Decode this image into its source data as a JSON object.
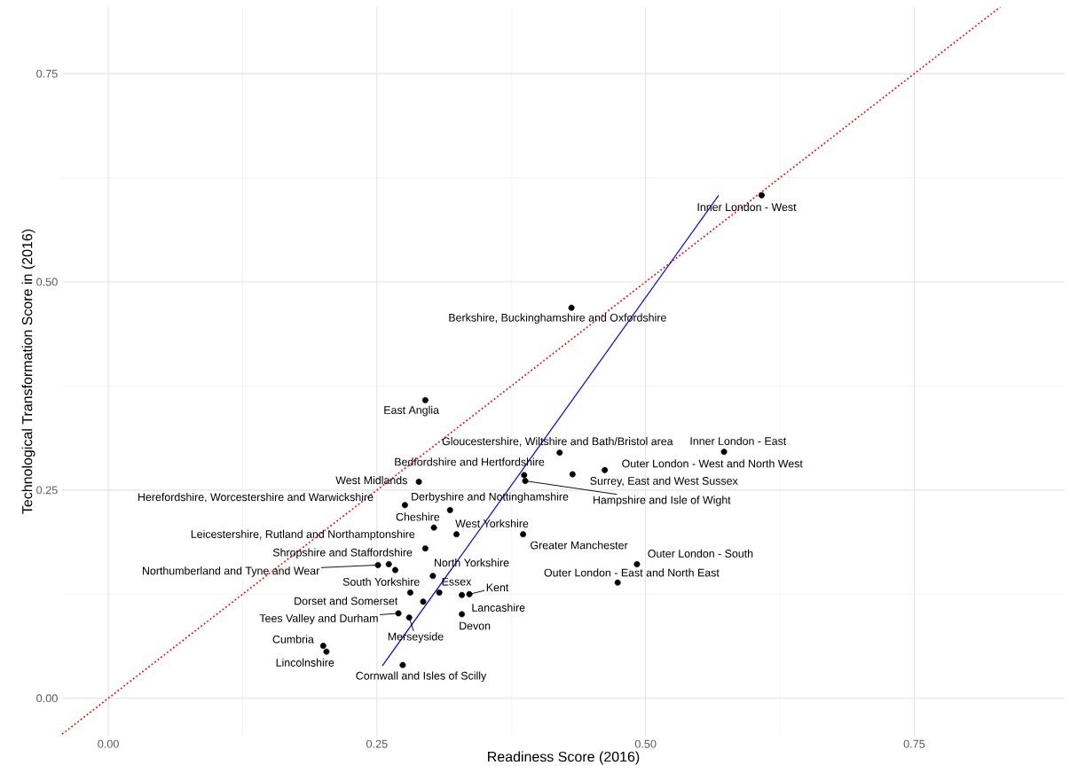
{
  "chart_data": {
    "type": "scatter",
    "xlabel": "Readiness Score (2016)",
    "ylabel": "Technological Transformation Score in (2016)",
    "xlim": [
      -0.043,
      0.89
    ],
    "ylim": [
      -0.045,
      0.83
    ],
    "xticks": [
      {
        "value": 0,
        "label": "0.00"
      },
      {
        "value": 0.25,
        "label": "0.25"
      },
      {
        "value": 0.5,
        "label": "0.50"
      },
      {
        "value": 0.75,
        "label": "0.75"
      }
    ],
    "yticks": [
      {
        "value": 0,
        "label": "0.00"
      },
      {
        "value": 0.25,
        "label": "0.25"
      },
      {
        "value": 0.5,
        "label": "0.50"
      },
      {
        "value": 0.75,
        "label": "0.75"
      }
    ],
    "grid": true,
    "series": [
      {
        "type": "line",
        "color": "#ff0000",
        "line_style": "dotted",
        "x": [
          -0.043,
          0.83
        ],
        "values": [
          -0.043,
          0.83
        ]
      },
      {
        "type": "line",
        "color": "#0000ff",
        "line_style": "solid",
        "x": [
          0.255,
          0.568
        ],
        "values": [
          0.039,
          0.604
        ]
      },
      {
        "type": "scatter",
        "color": "#000000",
        "marker": "circle",
        "x": [
          0.608,
          0.431,
          0.295,
          0.42,
          0.573,
          0.462,
          0.432,
          0.387,
          0.388,
          0.289,
          0.276,
          0.318,
          0.303,
          0.324,
          0.386,
          0.295,
          0.261,
          0.251,
          0.302,
          0.492,
          0.474,
          0.281,
          0.308,
          0.336,
          0.293,
          0.329,
          0.27,
          0.28,
          0.329,
          0.2,
          0.203,
          0.274,
          0.267
        ],
        "values": [
          0.604,
          0.469,
          0.358,
          0.295,
          0.296,
          0.274,
          0.269,
          0.268,
          0.261,
          0.26,
          0.232,
          0.226,
          0.205,
          0.197,
          0.197,
          0.18,
          0.161,
          0.16,
          0.147,
          0.161,
          0.139,
          0.127,
          0.127,
          0.125,
          0.116,
          0.124,
          0.102,
          0.097,
          0.101,
          0.063,
          0.056,
          0.04,
          0.154
        ]
      }
    ],
    "annotations": [
      {
        "text": "Inner London - West",
        "x": 0.608,
        "y": 0.604
      },
      {
        "text": "Berkshire, Buckinghamshire and Oxfordshire",
        "x": 0.431,
        "y": 0.469
      },
      {
        "text": "East Anglia",
        "x": 0.295,
        "y": 0.358
      },
      {
        "text": "Gloucestershire, Wiltshire and Bath/Bristol area",
        "x": 0.42,
        "y": 0.295
      },
      {
        "text": "Inner London - East",
        "x": 0.573,
        "y": 0.296
      },
      {
        "text": "Outer London - West and North West",
        "x": 0.462,
        "y": 0.274
      },
      {
        "text": "Surrey, East and West Sussex",
        "x": 0.432,
        "y": 0.269
      },
      {
        "text": "Bedfordshire and Hertfordshire",
        "x": 0.387,
        "y": 0.268
      },
      {
        "text": "Hampshire and Isle of Wight",
        "x": 0.388,
        "y": 0.261
      },
      {
        "text": "West Midlands",
        "x": 0.289,
        "y": 0.26
      },
      {
        "text": "Herefordshire, Worcestershire and Warwickshire",
        "x": 0.276,
        "y": 0.232
      },
      {
        "text": "Derbyshire and Nottinghamshire",
        "x": 0.318,
        "y": 0.226
      },
      {
        "text": "Cheshire",
        "x": 0.303,
        "y": 0.205
      },
      {
        "text": "West Yorkshire",
        "x": 0.324,
        "y": 0.197
      },
      {
        "text": "Greater Manchester",
        "x": 0.386,
        "y": 0.197
      },
      {
        "text": "Leicestershire, Rutland and Northamptonshire",
        "x": 0.295,
        "y": 0.18
      },
      {
        "text": "Shropshire and Staffordshire",
        "x": 0.261,
        "y": 0.161
      },
      {
        "text": "Northumberland and Tyne and Wear",
        "x": 0.251,
        "y": 0.16
      },
      {
        "text": "North Yorkshire",
        "x": 0.302,
        "y": 0.147
      },
      {
        "text": "Outer London - South",
        "x": 0.492,
        "y": 0.161
      },
      {
        "text": "Outer London - East and North East",
        "x": 0.474,
        "y": 0.139
      },
      {
        "text": "South Yorkshire",
        "x": 0.281,
        "y": 0.127
      },
      {
        "text": "Essex",
        "x": 0.308,
        "y": 0.127
      },
      {
        "text": "Kent",
        "x": 0.336,
        "y": 0.125
      },
      {
        "text": "Dorset and Somerset",
        "x": 0.293,
        "y": 0.116
      },
      {
        "text": "Lancashire",
        "x": 0.329,
        "y": 0.124
      },
      {
        "text": "Tees Valley and Durham",
        "x": 0.27,
        "y": 0.102
      },
      {
        "text": "Merseyside",
        "x": 0.28,
        "y": 0.097
      },
      {
        "text": "Devon",
        "x": 0.329,
        "y": 0.101
      },
      {
        "text": "Cumbria",
        "x": 0.2,
        "y": 0.063
      },
      {
        "text": "Lincolnshire",
        "x": 0.203,
        "y": 0.056
      },
      {
        "text": "Cornwall and Isles of Scilly",
        "x": 0.274,
        "y": 0.04
      }
    ]
  }
}
